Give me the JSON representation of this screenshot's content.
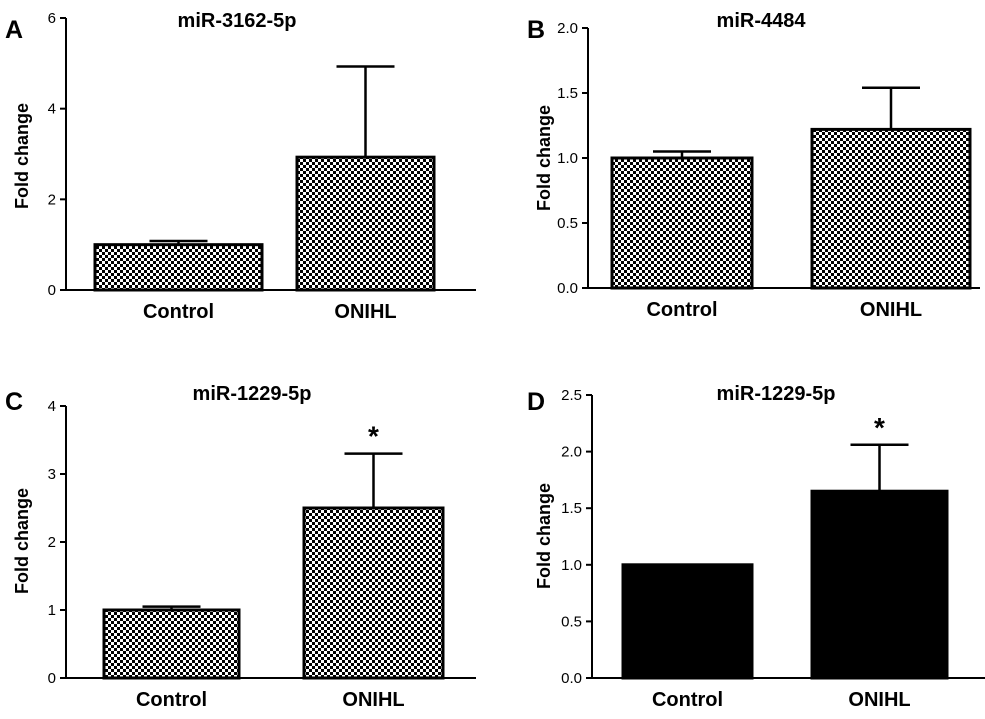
{
  "chart_data": [
    {
      "panel": "A",
      "type": "bar",
      "title": "miR-3162-5p",
      "ylabel": "Fold change",
      "xlabel": "",
      "categories": [
        "Control",
        "ONIHL"
      ],
      "values": [
        1.0,
        2.93
      ],
      "error": [
        0.08,
        2.0
      ],
      "significance": [
        "",
        ""
      ],
      "ylim": [
        0,
        6
      ],
      "yticks": [
        0,
        2,
        4,
        6
      ],
      "ytick_labels": [
        "0",
        "2",
        "4",
        "6"
      ],
      "fill": "checker-fine"
    },
    {
      "panel": "B",
      "type": "bar",
      "title": "miR-4484",
      "ylabel": "Fold change",
      "xlabel": "",
      "categories": [
        "Control",
        "ONIHL"
      ],
      "values": [
        1.0,
        1.22
      ],
      "error": [
        0.05,
        0.32
      ],
      "significance": [
        "",
        ""
      ],
      "ylim": [
        0,
        2
      ],
      "yticks": [
        0,
        0.5,
        1,
        1.5,
        2
      ],
      "ytick_labels": [
        "0.0",
        "0.5",
        "1.0",
        "1.5",
        "2.0"
      ],
      "fill": "checker-fine"
    },
    {
      "panel": "C",
      "type": "bar",
      "title": "miR-1229-5p",
      "ylabel": "Fold change",
      "xlabel": "",
      "categories": [
        "Control",
        "ONIHL"
      ],
      "values": [
        1.0,
        2.5
      ],
      "error": [
        0.05,
        0.8
      ],
      "significance": [
        "",
        "*"
      ],
      "ylim": [
        0,
        4
      ],
      "yticks": [
        0,
        1,
        2,
        3,
        4
      ],
      "ytick_labels": [
        "0",
        "1",
        "2",
        "3",
        "4"
      ],
      "fill": "checker-fine"
    },
    {
      "panel": "D",
      "type": "bar",
      "title": "miR-1229-5p",
      "ylabel": "Fold change",
      "xlabel": "",
      "categories": [
        "Control",
        "ONIHL"
      ],
      "values": [
        1.0,
        1.65
      ],
      "error": [
        0.0,
        0.41
      ],
      "significance": [
        "",
        "*"
      ],
      "ylim": [
        0,
        2.5
      ],
      "yticks": [
        0,
        0.5,
        1,
        1.5,
        2,
        2.5
      ],
      "ytick_labels": [
        "0.0",
        "0.5",
        "1.0",
        "1.5",
        "2.0",
        "2.5"
      ],
      "fill": "solid"
    }
  ],
  "colors": {
    "bar_solid": "#000000",
    "axis": "#000000",
    "checker_light": "#ffffff",
    "checker_dark": "#000000"
  }
}
